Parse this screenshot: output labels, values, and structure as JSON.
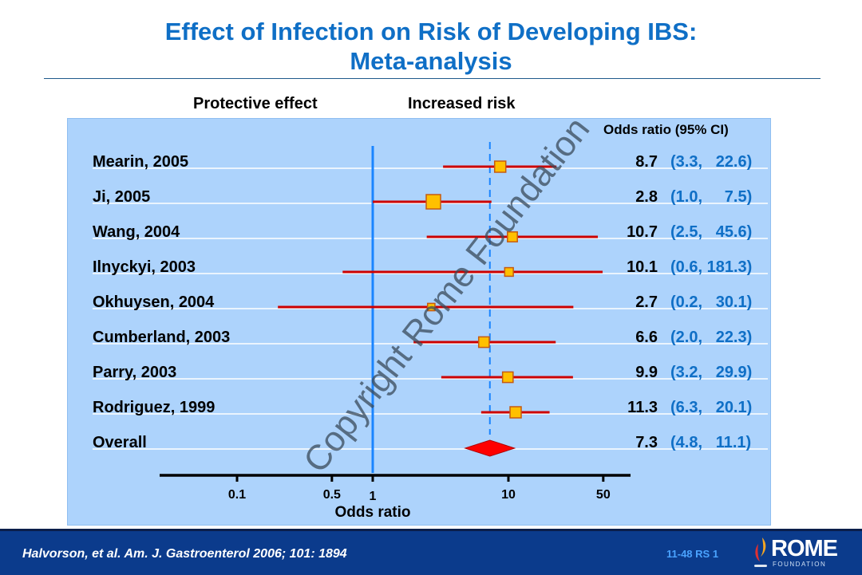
{
  "title": {
    "line1": "Effect of Infection on Risk of Developing IBS:",
    "line2": "Meta-analysis"
  },
  "colors": {
    "title": "#0f6fc6",
    "panel_bg": "#add3fc",
    "ci_line": "#cc0000",
    "marker_fill": "#ffc000",
    "marker_stroke": "#c55a11",
    "diamond": "#ff0000",
    "null_line": "#1a85ff",
    "ci_text": "#0f6fc6",
    "footer_bg": "#0b3b8c"
  },
  "chart_data": {
    "type": "forest",
    "title": "Effect of Infection on Risk of Developing IBS: Meta-analysis",
    "xlabel": "Odds ratio",
    "xscale": "log",
    "xlim": [
      0.05,
      80
    ],
    "xticks": [
      0.1,
      0.5,
      1,
      10,
      50
    ],
    "xtick_labels": [
      "0.1",
      "0.5",
      "1",
      "10",
      "50"
    ],
    "reference_line": 1,
    "pooled_line": 7.3,
    "left_header": "Protective effect",
    "right_header": "Increased risk",
    "column_header": "Odds ratio (95% CI)",
    "studies": [
      {
        "label": "Mearin, 2005",
        "or": 8.7,
        "lo": 3.3,
        "hi": 22.6,
        "or_text": "8.7",
        "ci_text": "(3.3,   22.6)",
        "weight": 2
      },
      {
        "label": "Ji, 2005",
        "or": 2.8,
        "lo": 1.0,
        "hi": 7.5,
        "or_text": "2.8",
        "ci_text": "(1.0,     7.5)",
        "weight": 3
      },
      {
        "label": "Wang, 2004",
        "or": 10.7,
        "lo": 2.5,
        "hi": 45.6,
        "or_text": "10.7",
        "ci_text": "(2.5,   45.6)",
        "weight": 1.6
      },
      {
        "label": "Ilnyckyi, 2003",
        "or": 10.1,
        "lo": 0.6,
        "hi": 181.3,
        "or_text": "10.1",
        "ci_text": "(0.6, 181.3)",
        "weight": 1.2
      },
      {
        "label": "Okhuysen, 2004",
        "or": 2.7,
        "lo": 0.2,
        "hi": 30.1,
        "or_text": "2.7",
        "ci_text": "(0.2,   30.1)",
        "weight": 0.8
      },
      {
        "label": "Cumberland, 2003",
        "or": 6.6,
        "lo": 2.0,
        "hi": 22.3,
        "or_text": "6.6",
        "ci_text": "(2.0,   22.3)",
        "weight": 1.8
      },
      {
        "label": "Parry, 2003",
        "or": 9.9,
        "lo": 3.2,
        "hi": 29.9,
        "or_text": "9.9",
        "ci_text": "(3.2,   29.9)",
        "weight": 1.8
      },
      {
        "label": "Rodriguez, 1999",
        "or": 11.3,
        "lo": 6.3,
        "hi": 20.1,
        "or_text": "11.3",
        "ci_text": "(6.3,   20.1)",
        "weight": 2
      }
    ],
    "overall": {
      "label": "Overall",
      "or": 7.3,
      "lo": 4.8,
      "hi": 11.1,
      "or_text": "7.3",
      "ci_text": "(4.8,   11.1)"
    }
  },
  "watermark": "Copyright Rome Foundation",
  "footer": {
    "citation": "Halvorson, et al.  Am. J. Gastroenterol  2006; 101: 1894",
    "slide_id": "11-48   RS 1",
    "logo_main": "ROME",
    "logo_sub": "FOUNDATION"
  }
}
